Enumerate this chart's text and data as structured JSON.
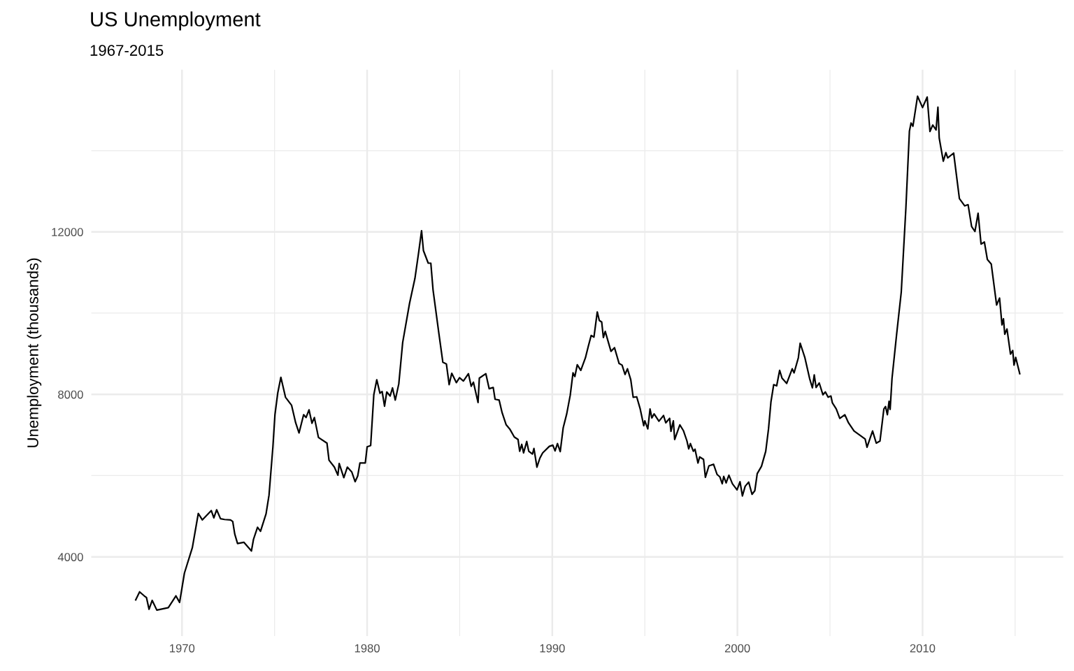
{
  "chart_data": {
    "type": "line",
    "title": "US Unemployment",
    "subtitle": "1967-2015",
    "ylabel": "Unemployment (thousands)",
    "xlim": [
      1965.1,
      2017.6
    ],
    "ylim": [
      2050,
      15990
    ],
    "xticks": [
      1970,
      {
        "value": 1975,
        "label": null
      },
      1980,
      {
        "value": 1985,
        "label": null
      },
      1990,
      {
        "value": 1995,
        "label": null
      },
      2000,
      {
        "value": 2005,
        "label": null
      },
      2010,
      {
        "value": 2015,
        "label": null
      }
    ],
    "yticks": [
      4000,
      {
        "value": 6000,
        "label": null
      },
      8000,
      {
        "value": 10000,
        "label": null
      },
      12000,
      {
        "value": 14000,
        "label": null
      }
    ],
    "grid": true,
    "marker": "none",
    "line_style": "solid",
    "series": [
      {
        "color": "#000000",
        "x": [
          1967.5,
          1967.71,
          1967.96,
          1968.08,
          1968.22,
          1968.39,
          1968.64,
          1969.26,
          1969.67,
          1969.87,
          1970.13,
          1970.56,
          1970.88,
          1971.1,
          1971.58,
          1971.72,
          1971.87,
          1972.08,
          1972.3,
          1972.62,
          1972.74,
          1972.85,
          1973.0,
          1973.34,
          1973.75,
          1973.86,
          1974.08,
          1974.24,
          1974.54,
          1974.7,
          1974.91,
          1975.02,
          1975.17,
          1975.34,
          1975.59,
          1975.92,
          1976.14,
          1976.32,
          1976.57,
          1976.7,
          1976.86,
          1977.02,
          1977.15,
          1977.37,
          1977.83,
          1977.94,
          1978.23,
          1978.42,
          1978.49,
          1978.74,
          1978.93,
          1979.17,
          1979.35,
          1979.49,
          1979.61,
          1979.9,
          1980.0,
          1980.19,
          1980.36,
          1980.52,
          1980.69,
          1980.81,
          1980.94,
          1981.06,
          1981.24,
          1981.37,
          1981.52,
          1981.71,
          1981.92,
          1982.29,
          1982.58,
          1982.79,
          1982.94,
          1983.04,
          1983.3,
          1983.44,
          1983.56,
          1983.88,
          1984.09,
          1984.28,
          1984.43,
          1984.57,
          1984.82,
          1984.99,
          1985.2,
          1985.47,
          1985.62,
          1985.74,
          1985.99,
          1986.06,
          1986.41,
          1986.59,
          1986.81,
          1986.91,
          1987.13,
          1987.29,
          1987.51,
          1987.7,
          1987.95,
          1988.15,
          1988.24,
          1988.35,
          1988.45,
          1988.62,
          1988.73,
          1988.93,
          1989.01,
          1989.17,
          1989.33,
          1989.48,
          1989.84,
          1990.03,
          1990.15,
          1990.28,
          1990.43,
          1990.59,
          1990.78,
          1990.97,
          1991.12,
          1991.22,
          1991.35,
          1991.54,
          1991.79,
          1991.95,
          1992.1,
          1992.25,
          1992.43,
          1992.54,
          1992.67,
          1992.76,
          1992.86,
          1993.17,
          1993.36,
          1993.61,
          1993.77,
          1993.93,
          1994.06,
          1994.24,
          1994.37,
          1994.56,
          1994.75,
          1994.94,
          1995.0,
          1995.16,
          1995.28,
          1995.38,
          1995.5,
          1995.76,
          1996.01,
          1996.13,
          1996.34,
          1996.41,
          1996.54,
          1996.61,
          1996.89,
          1997.08,
          1997.27,
          1997.37,
          1997.46,
          1997.62,
          1997.71,
          1997.87,
          1997.96,
          1998.17,
          1998.27,
          1998.46,
          1998.71,
          1998.9,
          1999.05,
          1999.18,
          1999.26,
          1999.39,
          1999.54,
          1999.73,
          1999.98,
          2000.14,
          2000.27,
          2000.42,
          2000.61,
          2000.79,
          2000.94,
          2001.07,
          2001.3,
          2001.53,
          2001.68,
          2001.81,
          2001.96,
          2002.12,
          2002.28,
          2002.41,
          2002.66,
          2002.96,
          2003.06,
          2003.29,
          2003.39,
          2003.64,
          2003.9,
          2004.05,
          2004.15,
          2004.25,
          2004.42,
          2004.62,
          2004.75,
          2004.9,
          2005.05,
          2005.13,
          2005.34,
          2005.53,
          2005.8,
          2006.0,
          2006.3,
          2006.6,
          2006.9,
          2007.0,
          2007.3,
          2007.5,
          2007.7,
          2007.91,
          2008.0,
          2008.1,
          2008.19,
          2008.25,
          2008.35,
          2008.6,
          2008.85,
          2009.1,
          2009.29,
          2009.38,
          2009.48,
          2009.73,
          2010.0,
          2010.25,
          2010.4,
          2010.55,
          2010.73,
          2010.83,
          2010.9,
          2011.12,
          2011.26,
          2011.36,
          2011.68,
          2011.99,
          2012.28,
          2012.46,
          2012.65,
          2012.83,
          2013.0,
          2013.16,
          2013.34,
          2013.5,
          2013.71,
          2014.0,
          2014.16,
          2014.29,
          2014.37,
          2014.44,
          2014.56,
          2014.75,
          2014.87,
          2014.94,
          2015.03,
          2015.25
        ],
        "values": [
          2940,
          3140,
          3040,
          3000,
          2710,
          2930,
          2690,
          2750,
          3040,
          2880,
          3600,
          4230,
          5070,
          4910,
          5140,
          4960,
          5160,
          4940,
          4920,
          4910,
          4870,
          4560,
          4330,
          4360,
          4145,
          4430,
          4730,
          4630,
          5060,
          5520,
          6710,
          7500,
          8030,
          8420,
          7930,
          7730,
          7300,
          7050,
          7500,
          7430,
          7620,
          7290,
          7430,
          6940,
          6800,
          6380,
          6210,
          6010,
          6300,
          5950,
          6210,
          6090,
          5850,
          5990,
          6310,
          6310,
          6710,
          6740,
          7990,
          8360,
          8030,
          8070,
          7710,
          8060,
          7960,
          8160,
          7860,
          8260,
          9280,
          10240,
          10850,
          11520,
          12030,
          11540,
          11230,
          11230,
          10570,
          9480,
          8790,
          8750,
          8240,
          8520,
          8290,
          8410,
          8330,
          8510,
          8200,
          8300,
          7800,
          8400,
          8510,
          8140,
          8170,
          7880,
          7860,
          7550,
          7250,
          7150,
          6950,
          6890,
          6600,
          6770,
          6560,
          6840,
          6600,
          6530,
          6670,
          6210,
          6430,
          6560,
          6720,
          6750,
          6610,
          6790,
          6590,
          7180,
          7520,
          7980,
          8530,
          8440,
          8730,
          8590,
          8900,
          9190,
          9450,
          9410,
          10030,
          9820,
          9780,
          9400,
          9550,
          9060,
          9150,
          8760,
          8720,
          8490,
          8630,
          8360,
          7930,
          7940,
          7640,
          7230,
          7350,
          7150,
          7640,
          7420,
          7520,
          7340,
          7480,
          7300,
          7410,
          7090,
          7350,
          6890,
          7250,
          7110,
          6860,
          6660,
          6790,
          6600,
          6650,
          6310,
          6460,
          6400,
          5960,
          6240,
          6280,
          6030,
          5970,
          5800,
          5980,
          5820,
          6010,
          5800,
          5650,
          5850,
          5500,
          5740,
          5840,
          5540,
          5630,
          6050,
          6230,
          6600,
          7150,
          7810,
          8240,
          8210,
          8590,
          8400,
          8270,
          8630,
          8530,
          8900,
          9260,
          8910,
          8390,
          8160,
          8480,
          8170,
          8280,
          7990,
          8060,
          7930,
          7960,
          7790,
          7640,
          7410,
          7500,
          7300,
          7100,
          7000,
          6900,
          6700,
          7100,
          6800,
          6850,
          7640,
          7700,
          7500,
          7830,
          7630,
          8390,
          9480,
          10520,
          12590,
          14480,
          14680,
          14600,
          15340,
          15060,
          15320,
          14470,
          14630,
          14510,
          15070,
          14310,
          13740,
          13950,
          13820,
          13940,
          12820,
          12640,
          12670,
          12130,
          12010,
          12460,
          11700,
          11750,
          11320,
          11210,
          10200,
          10370,
          9710,
          9860,
          9480,
          9610,
          8990,
          9080,
          8720,
          8910,
          8510
        ]
      }
    ]
  }
}
